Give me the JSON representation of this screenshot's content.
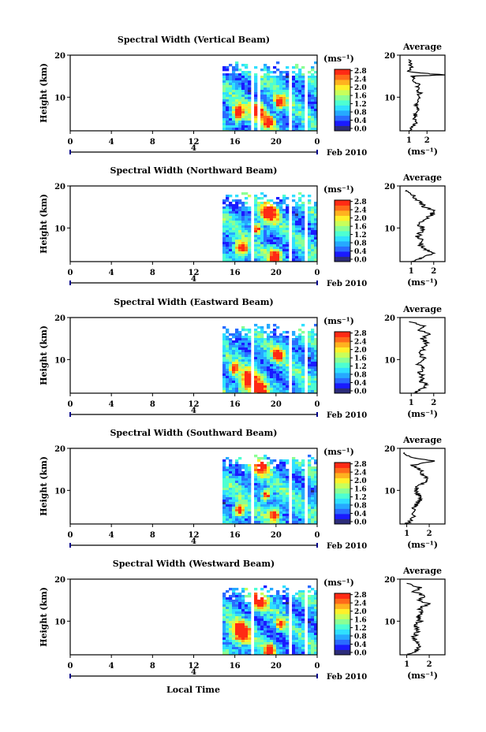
{
  "common": {
    "date_label": "Feb 2010",
    "day_label": "4",
    "cbar_unit": "(ms⁻¹)",
    "avg_title": "Average",
    "avg_xunit": "(ms⁻¹)",
    "ylabel": "Height (km)",
    "xlabel": "Local Time",
    "x_ticks": [
      "0",
      "4",
      "8",
      "12",
      "16",
      "20",
      "0"
    ],
    "y_ticks": [
      "20",
      "10"
    ],
    "cbar_ticks": [
      "2.8",
      "2.4",
      "2.0",
      "1.6",
      "1.2",
      "0.8",
      "0.4",
      "0.0"
    ],
    "colors": {
      "colormap": [
        "#2c2c7a",
        "#1a1aff",
        "#2a6bff",
        "#26a9ff",
        "#2fe0ff",
        "#4dffd2",
        "#8bff94",
        "#c8ff5a",
        "#fff02a",
        "#ffb21f",
        "#ff6a1a",
        "#ff2a14"
      ],
      "axis": "#000000",
      "profile": "#000000",
      "baseline_marker": "#00008b"
    }
  },
  "chart_data": [
    {
      "type": "heatmap",
      "title": "Spectral Width (Vertical Beam)",
      "xlabel": "Local Time",
      "ylabel": "Height (km)",
      "xlim": [
        0,
        24
      ],
      "ylim": [
        2,
        20
      ],
      "clim": [
        0.0,
        2.8
      ],
      "data_start_hour": 14.8,
      "top_km": 18.5,
      "gaps": [
        [
          17.5,
          17.8
        ],
        [
          18.0,
          18.3
        ],
        [
          21.0,
          21.3
        ],
        [
          22.6,
          22.8
        ]
      ],
      "hot_spots": [
        [
          18.1,
          7.0,
          0.7
        ],
        [
          16.2,
          6.5,
          0.6
        ],
        [
          20.2,
          9.0,
          0.5
        ],
        [
          19.2,
          4.5,
          0.5
        ]
      ],
      "average": {
        "xlim": [
          0.5,
          3.0
        ],
        "xticks": [
          "1",
          "2"
        ],
        "height_km": [
          2,
          3,
          4,
          5,
          6,
          7,
          8,
          9,
          10,
          11,
          12,
          13,
          14,
          15,
          15.3,
          16,
          17,
          18,
          19
        ],
        "value": [
          1.0,
          1.2,
          1.4,
          1.3,
          1.35,
          1.45,
          1.4,
          1.55,
          1.5,
          1.6,
          1.45,
          1.5,
          1.3,
          1.2,
          2.9,
          1.0,
          1.1,
          1.1,
          1.0
        ]
      }
    },
    {
      "type": "heatmap",
      "title": "Spectral Width (Northward Beam)",
      "xlabel": "Local Time",
      "ylabel": "Height (km)",
      "xlim": [
        0,
        24
      ],
      "ylim": [
        2,
        20
      ],
      "clim": [
        0.0,
        2.8
      ],
      "data_start_hour": 14.8,
      "top_km": 18.5,
      "gaps": [
        [
          17.5,
          17.8
        ],
        [
          21.0,
          21.3
        ],
        [
          22.6,
          22.8
        ]
      ],
      "hot_spots": [
        [
          19.2,
          14.0,
          0.8
        ],
        [
          16.5,
          5.5,
          0.6
        ],
        [
          19.8,
          3.5,
          0.6
        ],
        [
          18.0,
          10.0,
          0.4
        ]
      ],
      "average": {
        "xlim": [
          0.5,
          2.5
        ],
        "xticks": [
          "1",
          "2"
        ],
        "height_km": [
          2,
          3,
          4,
          5,
          6,
          7,
          8,
          9,
          10,
          11,
          12,
          13,
          14,
          15,
          16,
          17,
          18,
          19
        ],
        "value": [
          1.0,
          1.5,
          2.0,
          1.6,
          1.4,
          1.5,
          1.3,
          1.4,
          1.5,
          1.3,
          1.6,
          1.9,
          2.0,
          1.6,
          1.4,
          1.2,
          1.0,
          0.8
        ]
      }
    },
    {
      "type": "heatmap",
      "title": "Spectral Width (Eastward Beam)",
      "xlabel": "Local Time",
      "ylabel": "Height (km)",
      "xlim": [
        0,
        24
      ],
      "ylim": [
        2,
        20
      ],
      "clim": [
        0.0,
        2.8
      ],
      "data_start_hour": 14.8,
      "top_km": 18.5,
      "gaps": [
        [
          17.5,
          17.8
        ],
        [
          21.0,
          21.3
        ],
        [
          22.6,
          22.8
        ]
      ],
      "hot_spots": [
        [
          17.2,
          5.0,
          0.9
        ],
        [
          18.3,
          3.0,
          0.6
        ],
        [
          20.0,
          11.5,
          0.5
        ],
        [
          15.8,
          8.0,
          0.4
        ]
      ],
      "average": {
        "xlim": [
          0.5,
          2.5
        ],
        "xticks": [
          "1",
          "2"
        ],
        "height_km": [
          2,
          3,
          4,
          5,
          6,
          7,
          8,
          9,
          10,
          11,
          12,
          13,
          14,
          15,
          16,
          17,
          18,
          19
        ],
        "value": [
          1.1,
          1.5,
          1.7,
          1.4,
          1.5,
          1.4,
          1.5,
          1.3,
          1.6,
          1.4,
          1.5,
          1.6,
          1.7,
          1.5,
          1.8,
          1.4,
          1.6,
          0.9
        ]
      }
    },
    {
      "type": "heatmap",
      "title": "Spectral Width (Southward Beam)",
      "xlabel": "Local Time",
      "ylabel": "Height (km)",
      "xlim": [
        0,
        24
      ],
      "ylim": [
        2,
        20
      ],
      "clim": [
        0.0,
        2.8
      ],
      "data_start_hour": 14.8,
      "top_km": 18.5,
      "gaps": [
        [
          17.5,
          17.8
        ],
        [
          21.0,
          21.3
        ],
        [
          22.6,
          22.8
        ]
      ],
      "hot_spots": [
        [
          18.4,
          16.0,
          0.7
        ],
        [
          16.3,
          5.5,
          0.5
        ],
        [
          19.7,
          4.5,
          0.5
        ],
        [
          18.9,
          9.0,
          0.4
        ]
      ],
      "average": {
        "xlim": [
          0.7,
          2.7
        ],
        "xticks": [
          "1",
          "2"
        ],
        "height_km": [
          2,
          3,
          4,
          5,
          6,
          7,
          8,
          9,
          10,
          11,
          12,
          13,
          14,
          15,
          16,
          17,
          18,
          19
        ],
        "value": [
          1.0,
          1.2,
          1.3,
          1.4,
          1.3,
          1.5,
          1.6,
          1.5,
          1.4,
          1.5,
          1.8,
          1.9,
          1.7,
          1.6,
          1.3,
          2.2,
          1.1,
          0.9
        ]
      }
    },
    {
      "type": "heatmap",
      "title": "Spectral Width (Westward Beam)",
      "xlabel": "Local Time",
      "ylabel": "Height (km)",
      "xlim": [
        0,
        24
      ],
      "ylim": [
        2,
        20
      ],
      "clim": [
        0.0,
        2.8
      ],
      "data_start_hour": 14.8,
      "top_km": 18.5,
      "gaps": [
        [
          17.5,
          17.8
        ],
        [
          21.0,
          21.3
        ],
        [
          22.6,
          22.8
        ]
      ],
      "hot_spots": [
        [
          16.4,
          7.5,
          0.9
        ],
        [
          18.2,
          15.0,
          0.7
        ],
        [
          19.2,
          3.5,
          0.5
        ],
        [
          20.3,
          9.5,
          0.4
        ]
      ],
      "average": {
        "xlim": [
          0.7,
          2.7
        ],
        "xticks": [
          "1",
          "2"
        ],
        "height_km": [
          2,
          3,
          4,
          5,
          6,
          7,
          8,
          9,
          10,
          11,
          12,
          13,
          14,
          15,
          16,
          17,
          18,
          19
        ],
        "value": [
          1.1,
          1.4,
          1.6,
          1.5,
          1.3,
          1.4,
          1.5,
          1.3,
          1.6,
          1.5,
          1.7,
          1.5,
          2.0,
          1.6,
          1.8,
          1.3,
          1.6,
          1.0
        ]
      }
    }
  ]
}
